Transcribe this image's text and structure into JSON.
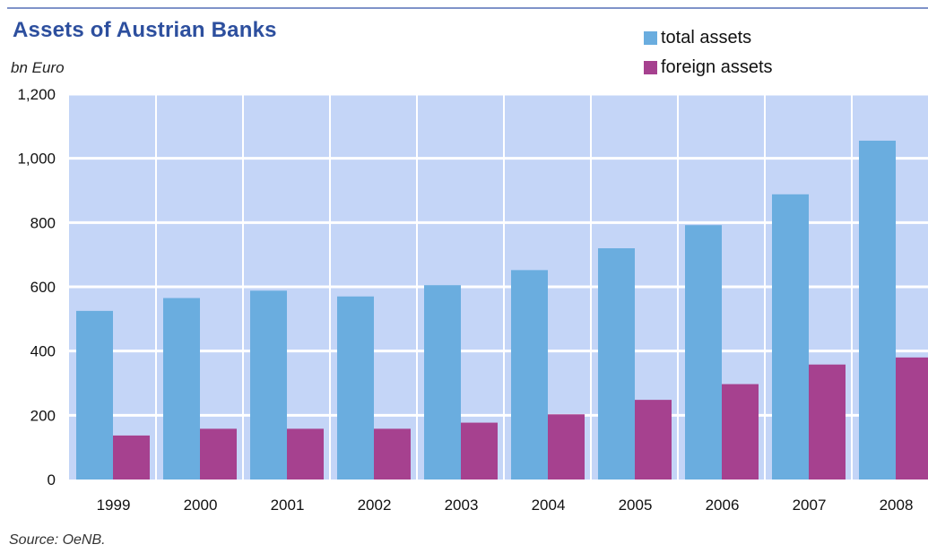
{
  "title": "Assets of Austrian Banks",
  "unit": "bn Euro",
  "source": "Source: OeNB.",
  "colors": {
    "plot_bg": "#c4d5f7",
    "grid": "#ffffff",
    "total": "#6aaddf",
    "foreign": "#a6418f",
    "title": "#2d4f9e"
  },
  "chart_data": {
    "type": "bar",
    "title": "Assets of Austrian Banks",
    "ylabel": "bn Euro",
    "xlabel": "",
    "categories": [
      "1999",
      "2000",
      "2001",
      "2002",
      "2003",
      "2004",
      "2005",
      "2006",
      "2007",
      "2008"
    ],
    "series": [
      {
        "name": "total assets",
        "values": [
          525,
          565,
          588,
          570,
          605,
          652,
          720,
          792,
          888,
          1055
        ]
      },
      {
        "name": "foreign assets",
        "values": [
          137,
          158,
          158,
          158,
          177,
          203,
          248,
          297,
          358,
          380
        ]
      }
    ],
    "ylim": [
      0,
      1200
    ],
    "yticks": [
      0,
      200,
      400,
      600,
      800,
      1000,
      1200
    ],
    "ytick_labels": [
      "0",
      "200",
      "400",
      "600",
      "800",
      "1,000",
      "1,200"
    ],
    "grid": true,
    "legend_position": "top-right"
  }
}
